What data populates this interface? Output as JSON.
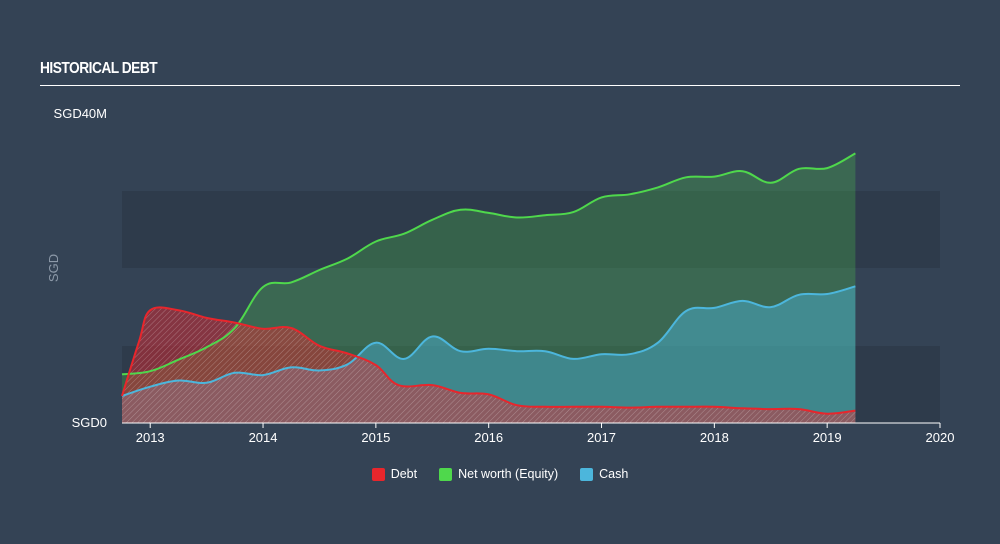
{
  "header": {
    "title": "HISTORICAL DEBT"
  },
  "chart_data": {
    "type": "area",
    "ylabel": "SGD",
    "ylim": [
      0,
      40
    ],
    "xlim": [
      2012.75,
      2020
    ],
    "y_ticks": [
      {
        "value": 40,
        "label": "SGD40M"
      },
      {
        "value": 0,
        "label": "SGD0"
      }
    ],
    "x_ticks": [
      {
        "value": 2013,
        "label": "2013"
      },
      {
        "value": 2014,
        "label": "2014"
      },
      {
        "value": 2015,
        "label": "2015"
      },
      {
        "value": 2016,
        "label": "2016"
      },
      {
        "value": 2017,
        "label": "2017"
      },
      {
        "value": 2018,
        "label": "2018"
      },
      {
        "value": 2019,
        "label": "2019"
      },
      {
        "value": 2020,
        "label": "2020"
      }
    ],
    "grid": false,
    "legend_position": "bottom-center",
    "series": [
      {
        "name": "Debt",
        "color": "#e8262c",
        "points": [
          [
            2012.75,
            3.5
          ],
          [
            2012.9,
            10.5
          ],
          [
            2013.0,
            14.6
          ],
          [
            2013.25,
            14.6
          ],
          [
            2013.5,
            13.6
          ],
          [
            2013.75,
            13.0
          ],
          [
            2014.0,
            12.2
          ],
          [
            2014.25,
            12.3
          ],
          [
            2014.5,
            10.0
          ],
          [
            2014.75,
            9.0
          ],
          [
            2015.0,
            7.5
          ],
          [
            2015.2,
            4.9
          ],
          [
            2015.5,
            4.9
          ],
          [
            2015.75,
            3.9
          ],
          [
            2016.0,
            3.7
          ],
          [
            2016.25,
            2.3
          ],
          [
            2016.5,
            2.1
          ],
          [
            2016.75,
            2.1
          ],
          [
            2017.0,
            2.1
          ],
          [
            2017.25,
            2.0
          ],
          [
            2017.5,
            2.1
          ],
          [
            2017.75,
            2.1
          ],
          [
            2018.0,
            2.1
          ],
          [
            2018.25,
            1.9
          ],
          [
            2018.5,
            1.8
          ],
          [
            2018.75,
            1.8
          ],
          [
            2019.0,
            1.2
          ],
          [
            2019.25,
            1.6
          ]
        ]
      },
      {
        "name": "Net worth (Equity)",
        "color": "#4fd84c",
        "points": [
          [
            2012.75,
            6.3
          ],
          [
            2013.0,
            6.7
          ],
          [
            2013.25,
            8.2
          ],
          [
            2013.5,
            9.8
          ],
          [
            2013.75,
            12.3
          ],
          [
            2014.0,
            17.6
          ],
          [
            2014.25,
            18.2
          ],
          [
            2014.5,
            19.8
          ],
          [
            2014.75,
            21.3
          ],
          [
            2015.0,
            23.5
          ],
          [
            2015.25,
            24.5
          ],
          [
            2015.5,
            26.3
          ],
          [
            2015.75,
            27.6
          ],
          [
            2016.0,
            27.2
          ],
          [
            2016.25,
            26.6
          ],
          [
            2016.5,
            26.9
          ],
          [
            2016.75,
            27.3
          ],
          [
            2017.0,
            29.2
          ],
          [
            2017.25,
            29.6
          ],
          [
            2017.5,
            30.5
          ],
          [
            2017.75,
            31.8
          ],
          [
            2018.0,
            31.9
          ],
          [
            2018.25,
            32.6
          ],
          [
            2018.5,
            31.1
          ],
          [
            2018.75,
            32.9
          ],
          [
            2019.0,
            33.0
          ],
          [
            2019.25,
            34.9
          ]
        ]
      },
      {
        "name": "Cash",
        "color": "#4cb6dc",
        "points": [
          [
            2012.75,
            3.5
          ],
          [
            2013.0,
            4.7
          ],
          [
            2013.25,
            5.5
          ],
          [
            2013.5,
            5.2
          ],
          [
            2013.75,
            6.5
          ],
          [
            2014.0,
            6.2
          ],
          [
            2014.25,
            7.2
          ],
          [
            2014.5,
            6.8
          ],
          [
            2014.75,
            7.6
          ],
          [
            2015.0,
            10.4
          ],
          [
            2015.25,
            8.3
          ],
          [
            2015.5,
            11.2
          ],
          [
            2015.75,
            9.3
          ],
          [
            2016.0,
            9.6
          ],
          [
            2016.25,
            9.3
          ],
          [
            2016.5,
            9.3
          ],
          [
            2016.75,
            8.3
          ],
          [
            2017.0,
            8.9
          ],
          [
            2017.25,
            8.9
          ],
          [
            2017.5,
            10.4
          ],
          [
            2017.75,
            14.5
          ],
          [
            2018.0,
            14.9
          ],
          [
            2018.25,
            15.8
          ],
          [
            2018.5,
            15.0
          ],
          [
            2018.75,
            16.6
          ],
          [
            2019.0,
            16.7
          ],
          [
            2019.25,
            17.7
          ]
        ]
      }
    ]
  }
}
